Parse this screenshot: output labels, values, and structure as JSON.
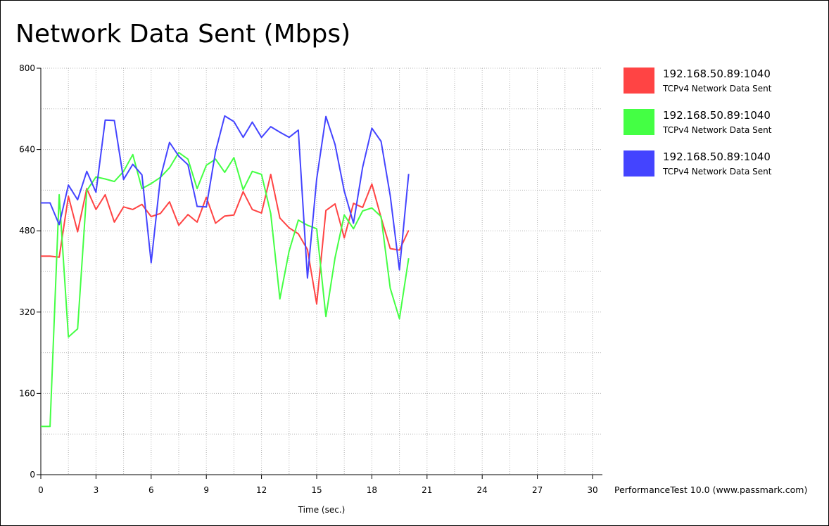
{
  "colors": {
    "background": "#ffffff",
    "grid": "#b4b4b4",
    "axis": "#000000"
  },
  "chart_data": {
    "type": "line",
    "title": "Network Data Sent (Mbps)",
    "xlabel": "Time (sec.)",
    "ylabel": "",
    "xlim": [
      0,
      30
    ],
    "ylim": [
      0,
      800
    ],
    "x_ticks": [
      0,
      3,
      6,
      9,
      12,
      15,
      18,
      21,
      24,
      27,
      30
    ],
    "y_ticks": [
      0,
      160,
      320,
      480,
      640,
      800
    ],
    "grid": true,
    "legend_position": "right",
    "x": [
      0,
      0.5,
      1,
      1.5,
      2,
      2.5,
      3,
      3.5,
      4,
      4.5,
      5,
      5.5,
      6,
      6.5,
      7,
      7.5,
      8,
      8.5,
      9,
      9.5,
      10,
      10.5,
      11,
      11.5,
      12,
      12.5,
      13,
      13.5,
      14,
      14.5,
      15,
      15.5,
      16,
      16.5,
      17,
      17.5,
      18,
      18.5,
      19,
      19.5,
      20
    ],
    "series": [
      {
        "name": "192.168.50.89:1040",
        "subtitle": "TCPv4 Network Data Sent",
        "color": "#ff4444",
        "values": [
          430,
          430,
          428,
          548,
          478,
          563,
          522,
          551,
          497,
          527,
          522,
          532,
          508,
          514,
          537,
          491,
          512,
          497,
          546,
          495,
          509,
          511,
          557,
          522,
          515,
          591,
          505,
          486,
          474,
          443,
          336,
          520,
          533,
          466,
          534,
          526,
          572,
          506,
          445,
          442,
          481
        ]
      },
      {
        "name": "192.168.50.89:1040",
        "subtitle": "TCPv4 Network Data Sent",
        "color": "#44ff44",
        "values": [
          95,
          95,
          551,
          271,
          287,
          559,
          586,
          582,
          577,
          597,
          630,
          563,
          573,
          585,
          604,
          634,
          621,
          563,
          609,
          621,
          595,
          624,
          561,
          597,
          591,
          514,
          346,
          440,
          501,
          491,
          484,
          311,
          427,
          511,
          484,
          519,
          525,
          508,
          367,
          307,
          426
        ]
      },
      {
        "name": "192.168.50.89:1040",
        "subtitle": "TCPv4 Network Data Sent",
        "color": "#4444ff",
        "values": [
          535,
          535,
          492,
          570,
          541,
          597,
          556,
          698,
          697,
          581,
          611,
          590,
          417,
          584,
          654,
          627,
          610,
          528,
          527,
          636,
          706,
          695,
          664,
          694,
          664,
          685,
          674,
          664,
          678,
          387,
          582,
          705,
          650,
          558,
          495,
          605,
          682,
          656,
          549,
          403,
          592
        ]
      }
    ]
  },
  "footer": "PerformanceTest 10.0 (www.passmark.com)"
}
